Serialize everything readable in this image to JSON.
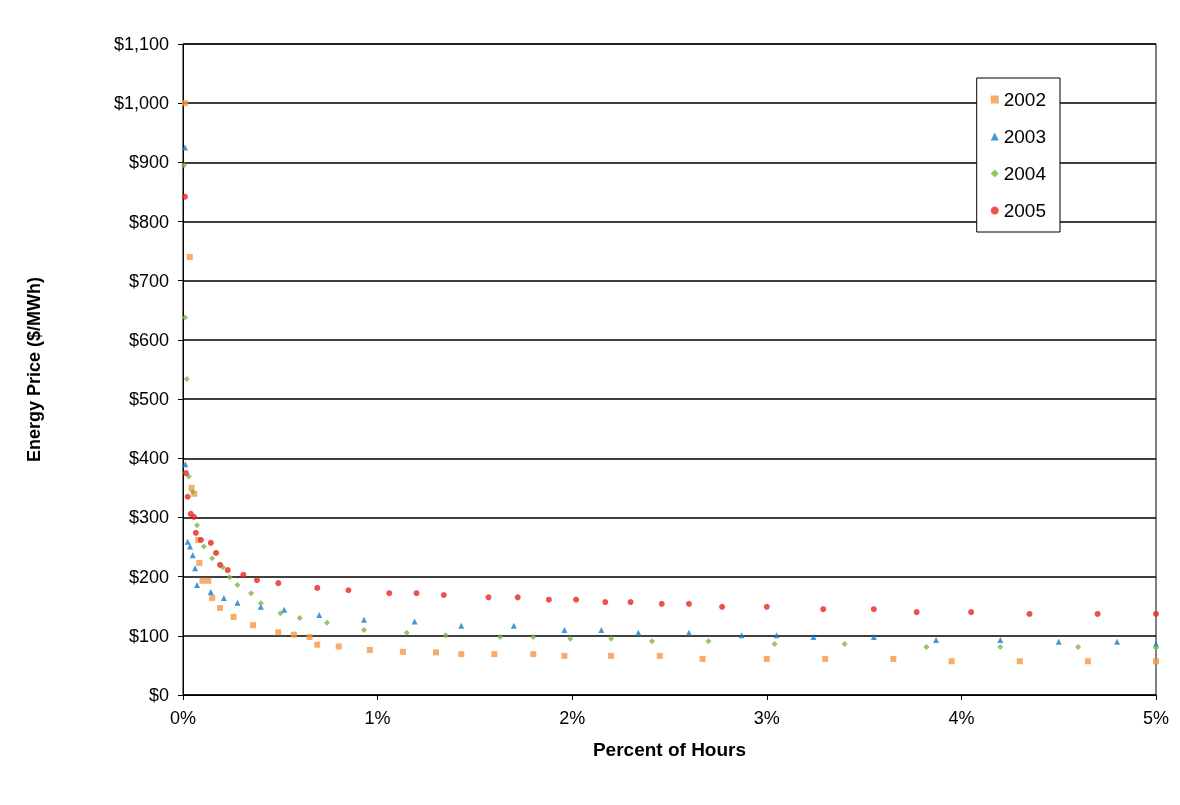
{
  "chart_data": {
    "type": "scatter",
    "xlabel": "Percent of Hours",
    "ylabel": "Energy Price ($/MWh)",
    "xlim": [
      0,
      5
    ],
    "xticks": [
      {
        "value": 0,
        "label": "0%"
      },
      {
        "value": 1,
        "label": "1%"
      },
      {
        "value": 2,
        "label": "2%"
      },
      {
        "value": 3,
        "label": "3%"
      },
      {
        "value": 4,
        "label": "4%"
      },
      {
        "value": 5,
        "label": "5%"
      }
    ],
    "ylim": [
      0,
      1100
    ],
    "yticks": [
      {
        "value": 0,
        "label": "$0"
      },
      {
        "value": 100,
        "label": "$100"
      },
      {
        "value": 200,
        "label": "$200"
      },
      {
        "value": 300,
        "label": "$300"
      },
      {
        "value": 400,
        "label": "$400"
      },
      {
        "value": 500,
        "label": "$500"
      },
      {
        "value": 600,
        "label": "$600"
      },
      {
        "value": 700,
        "label": "$700"
      },
      {
        "value": 800,
        "label": "$800"
      },
      {
        "value": 900,
        "label": "$900"
      },
      {
        "value": 1000,
        "label": "$1,000"
      },
      {
        "value": 1100,
        "label": "$1,100"
      }
    ],
    "grid": "y",
    "legend": "top right",
    "series": [
      {
        "name": "2002",
        "color": "#f79646",
        "marker": "square",
        "x": [
          0.01,
          0.035,
          0.044,
          0.058,
          0.078,
          0.084,
          0.1,
          0.13,
          0.15,
          0.19,
          0.26,
          0.36,
          0.49,
          0.57,
          0.65,
          0.69,
          0.8,
          0.96,
          1.13,
          1.3,
          1.43,
          1.6,
          1.8,
          1.96,
          2.2,
          2.45,
          2.67,
          3.0,
          3.3,
          3.65,
          3.95,
          4.3,
          4.65,
          5.0
        ],
        "values": [
          1000,
          740,
          350,
          340,
          262,
          223,
          193,
          193,
          164,
          147,
          132,
          118,
          106,
          102,
          98,
          85,
          82,
          76,
          73,
          72,
          69,
          69,
          69,
          66,
          66,
          66,
          61,
          61,
          61,
          61,
          57,
          57,
          57,
          57
        ]
      },
      {
        "name": "2003",
        "color": "#0c7fd0",
        "marker": "triangle",
        "x": [
          0.01,
          0.012,
          0.024,
          0.036,
          0.05,
          0.062,
          0.072,
          0.143,
          0.21,
          0.28,
          0.4,
          0.52,
          0.7,
          0.93,
          1.19,
          1.43,
          1.7,
          1.96,
          2.15,
          2.34,
          2.6,
          2.87,
          3.05,
          3.24,
          3.55,
          3.87,
          4.2,
          4.5,
          4.8,
          5.0
        ],
        "values": [
          925,
          390,
          259,
          251,
          236,
          214,
          186,
          174,
          164,
          156,
          149,
          144,
          135,
          127,
          124,
          117,
          117,
          110,
          110,
          105,
          105,
          101,
          101,
          98,
          98,
          93,
          93,
          90,
          90,
          86
        ]
      },
      {
        "name": "2004",
        "color": "#7ab648",
        "marker": "diamond",
        "x": [
          0.005,
          0.01,
          0.02,
          0.03,
          0.05,
          0.072,
          0.107,
          0.15,
          0.205,
          0.24,
          0.28,
          0.35,
          0.4,
          0.5,
          0.6,
          0.74,
          0.93,
          1.15,
          1.35,
          1.63,
          1.8,
          1.99,
          2.2,
          2.41,
          2.7,
          3.04,
          3.4,
          3.82,
          4.2,
          4.6,
          5.0
        ],
        "values": [
          895,
          638,
          534,
          369,
          343,
          287,
          251,
          231,
          216,
          199,
          186,
          172,
          155,
          138,
          130,
          122,
          110,
          105,
          101,
          98,
          98,
          95,
          95,
          91,
          91,
          86,
          86,
          81,
          81,
          81,
          80
        ]
      },
      {
        "name": "2005",
        "color": "#e8261e",
        "marker": "circle",
        "x": [
          0.01,
          0.015,
          0.024,
          0.04,
          0.056,
          0.066,
          0.092,
          0.143,
          0.17,
          0.19,
          0.23,
          0.31,
          0.38,
          0.49,
          0.69,
          0.85,
          1.06,
          1.2,
          1.34,
          1.57,
          1.72,
          1.88,
          2.02,
          2.17,
          2.3,
          2.46,
          2.6,
          2.77,
          3.0,
          3.29,
          3.55,
          3.77,
          4.05,
          4.35,
          4.7,
          5.0
        ],
        "values": [
          842,
          375,
          335,
          306,
          301,
          274,
          262,
          257,
          240,
          220,
          211,
          203,
          194,
          189,
          181,
          177,
          172,
          172,
          169,
          165,
          165,
          161,
          161,
          157,
          157,
          154,
          154,
          149,
          149,
          145,
          145,
          140,
          140,
          137,
          137,
          137
        ]
      }
    ]
  }
}
